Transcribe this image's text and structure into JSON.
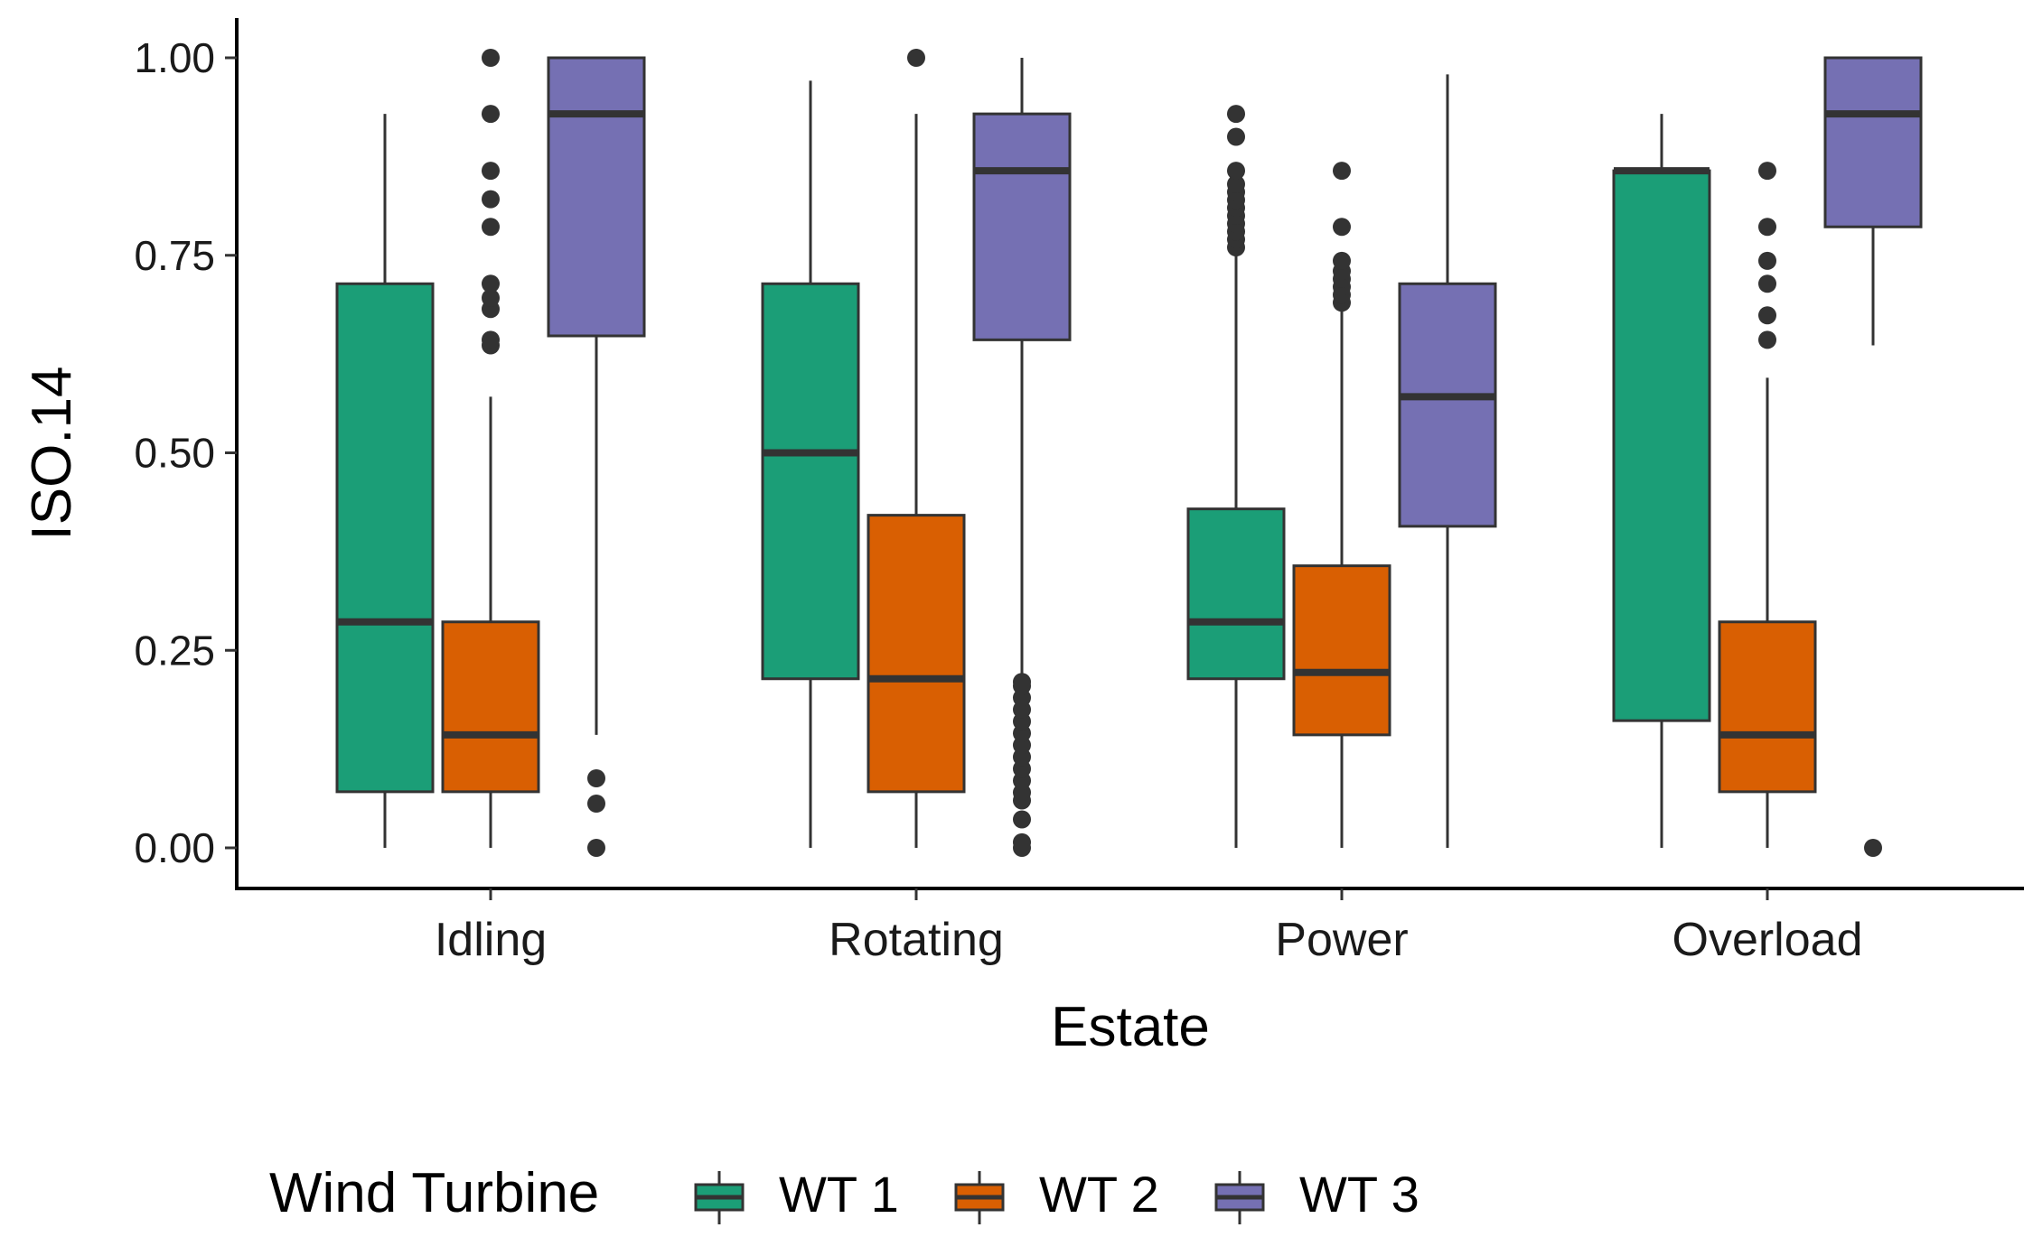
{
  "chart_data": {
    "type": "boxplot",
    "title": "",
    "xlabel": "Estate",
    "ylabel": "ISO.14",
    "categories": [
      "Idling",
      "Rotating",
      "Power",
      "Overload"
    ],
    "ylim": [
      -0.05,
      1.05
    ],
    "yticks": [
      0.0,
      0.25,
      0.5,
      0.75,
      1.0
    ],
    "ytick_labels": [
      "0.00",
      "0.25",
      "0.50",
      "0.75",
      "1.00"
    ],
    "grid": false,
    "legend": {
      "title": "Wind Turbine",
      "position": "bottom"
    },
    "series": [
      {
        "name": "WT 1",
        "color": "#1b9e77",
        "boxes": [
          {
            "category": "Idling",
            "min": 0.0,
            "q1": 0.071,
            "median": 0.286,
            "q3": 0.714,
            "max": 0.929,
            "outliers": []
          },
          {
            "category": "Rotating",
            "min": 0.0,
            "q1": 0.214,
            "median": 0.5,
            "q3": 0.714,
            "max": 0.971,
            "outliers": []
          },
          {
            "category": "Power",
            "min": 0.0,
            "q1": 0.214,
            "median": 0.286,
            "q3": 0.429,
            "max": 0.75,
            "outliers": [
              0.76,
              0.77,
              0.78,
              0.79,
              0.8,
              0.81,
              0.82,
              0.83,
              0.84,
              0.857,
              0.9,
              0.929
            ]
          },
          {
            "category": "Overload",
            "min": 0.0,
            "q1": 0.161,
            "median": 0.857,
            "q3": 0.857,
            "max": 0.929,
            "outliers": []
          }
        ]
      },
      {
        "name": "WT 2",
        "color": "#d95f02",
        "boxes": [
          {
            "category": "Idling",
            "min": 0.0,
            "q1": 0.071,
            "median": 0.143,
            "q3": 0.286,
            "max": 0.571,
            "outliers": [
              0.636,
              0.643,
              0.682,
              0.696,
              0.714,
              0.786,
              0.821,
              0.857,
              0.929,
              1.0
            ]
          },
          {
            "category": "Rotating",
            "min": 0.0,
            "q1": 0.071,
            "median": 0.214,
            "q3": 0.421,
            "max": 0.929,
            "outliers": [
              1.0
            ]
          },
          {
            "category": "Power",
            "min": 0.0,
            "q1": 0.143,
            "median": 0.222,
            "q3": 0.357,
            "max": 0.68,
            "outliers": [
              0.69,
              0.7,
              0.71,
              0.72,
              0.73,
              0.743,
              0.786,
              0.857
            ]
          },
          {
            "category": "Overload",
            "min": 0.0,
            "q1": 0.071,
            "median": 0.143,
            "q3": 0.286,
            "max": 0.595,
            "outliers": [
              0.643,
              0.674,
              0.714,
              0.743,
              0.786,
              0.857
            ]
          }
        ]
      },
      {
        "name": "WT 3",
        "color": "#7570b3",
        "boxes": [
          {
            "category": "Idling",
            "min": 0.143,
            "q1": 0.648,
            "median": 0.929,
            "q3": 1.0,
            "max": 1.0,
            "outliers": [
              0.0,
              0.056,
              0.088
            ]
          },
          {
            "category": "Rotating",
            "min": 0.214,
            "q1": 0.643,
            "median": 0.857,
            "q3": 0.929,
            "max": 1.0,
            "outliers": [
              0.0,
              0.007,
              0.036,
              0.06,
              0.07,
              0.085,
              0.1,
              0.115,
              0.13,
              0.145,
              0.16,
              0.175,
              0.19,
              0.205,
              0.21
            ]
          },
          {
            "category": "Power",
            "min": 0.0,
            "q1": 0.407,
            "median": 0.571,
            "q3": 0.714,
            "max": 0.979,
            "outliers": []
          },
          {
            "category": "Overload",
            "min": 0.636,
            "q1": 0.786,
            "median": 0.929,
            "q3": 1.0,
            "max": 1.0,
            "outliers": [
              0.0
            ]
          }
        ]
      }
    ]
  }
}
